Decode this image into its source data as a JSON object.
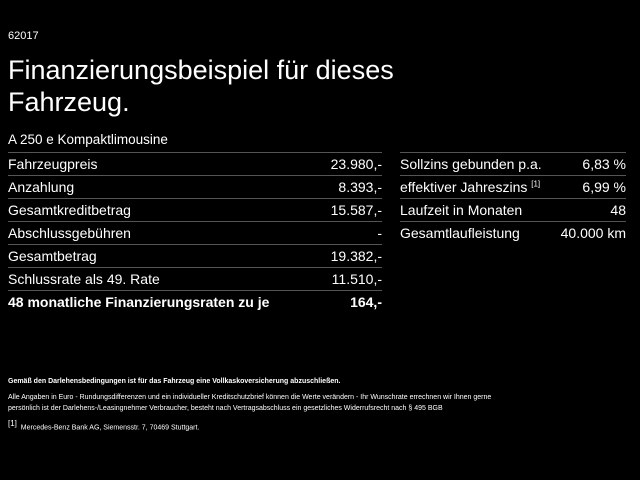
{
  "header": {
    "code": "62017",
    "title": "Finanzierungsbeispiel für dieses Fahrzeug.",
    "subtitle": "A 250 e Kompaktlimousine"
  },
  "left_table": {
    "rows": [
      [
        "Fahrzeugpreis",
        "23.980,-"
      ],
      [
        "Anzahlung",
        "8.393,-"
      ],
      [
        "Gesamtkreditbetrag",
        "15.587,-"
      ],
      [
        "Abschlussgebühren",
        "-"
      ],
      [
        "Gesamtbetrag",
        "19.382,-"
      ],
      [
        "Schlussrate als 49. Rate",
        "11.510,-"
      ],
      [
        "48 monatliche Finanzierungsraten zu je",
        "164,-"
      ]
    ]
  },
  "right_table": {
    "rows": [
      {
        "label": "Sollzins gebunden p.a.",
        "value": "6,83 %"
      },
      {
        "label": "effektiver Jahreszins",
        "note": "[1]",
        "value": "6,99 %"
      },
      {
        "label": "Laufzeit in Monaten",
        "value": "48"
      },
      {
        "label": "Gesamtlaufleistung",
        "value": "40.000 km"
      }
    ]
  },
  "notes": {
    "bold": "Gemäß den Darlehensbedingungen ist für das Fahrzeug eine Vollkaskoversicherung abzuschließen.",
    "text": "Alle Angaben in Euro - Rundungsdifferenzen und ein individueller Kreditschutzbrief können die Werte verändern - Ihr Wunschrate errechnen wir Ihnen gerne persönlich ist der Darlehens-/Leasingnehmer Verbraucher, besteht nach Vertragsabschluss ein gesetzliches Widerrufsrecht nach § 495 BGB",
    "footnote": {
      "marker": "[1]",
      "text": "Mercedes-Benz Bank AG, Siemensstr. 7, 70469 Stuttgart."
    }
  }
}
